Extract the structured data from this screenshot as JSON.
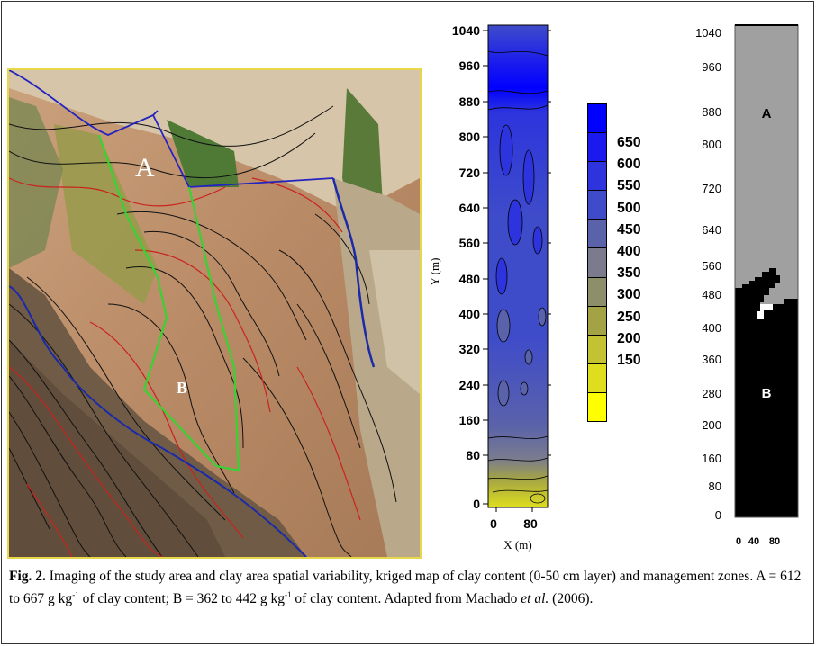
{
  "photo": {
    "label_a": "A",
    "label_b": "B"
  },
  "kriged_map": {
    "y_ticks": [
      "1040",
      "960",
      "880",
      "800",
      "720",
      "640",
      "560",
      "480",
      "400",
      "320",
      "240",
      "160",
      "80",
      "0"
    ],
    "x_ticks": [
      "0",
      "80"
    ],
    "y_axis_label": "Y (m)",
    "x_axis_label": "X (m)"
  },
  "legend": {
    "values": [
      "650",
      "600",
      "550",
      "500",
      "450",
      "400",
      "350",
      "300",
      "250",
      "200",
      "150"
    ],
    "colors": [
      "#0000ff",
      "#1a1aee",
      "#2d34dd",
      "#3f4cc9",
      "#5a62aa",
      "#7a7c8e",
      "#8d8f6a",
      "#a3a346",
      "#c2c232",
      "#dede1e",
      "#ffff00"
    ]
  },
  "zones_map": {
    "y_ticks": [
      "1040",
      "960",
      "880",
      "800",
      "720",
      "640",
      "560",
      "480",
      "400",
      "360",
      "280",
      "200",
      "160",
      "80",
      "0"
    ],
    "x_ticks": [
      "0",
      "40",
      "80"
    ],
    "label_a": "A",
    "label_b": "B",
    "color_a": "#a0a0a0",
    "color_b": "#000000"
  },
  "caption": {
    "fig_label": "Fig. 2.",
    "part1": " Imaging of the study area and clay area spatial variability, kriged map of clay content (0-50 cm layer) and management zones. A = 612 to 667 g kg",
    "sup1": "-1",
    "part2": " of clay content; B = 362 to 442 g kg",
    "sup2": "-1",
    "part3": " of clay content. Adapted from Machado ",
    "etal": "et al.",
    "part4": " (2006)."
  }
}
